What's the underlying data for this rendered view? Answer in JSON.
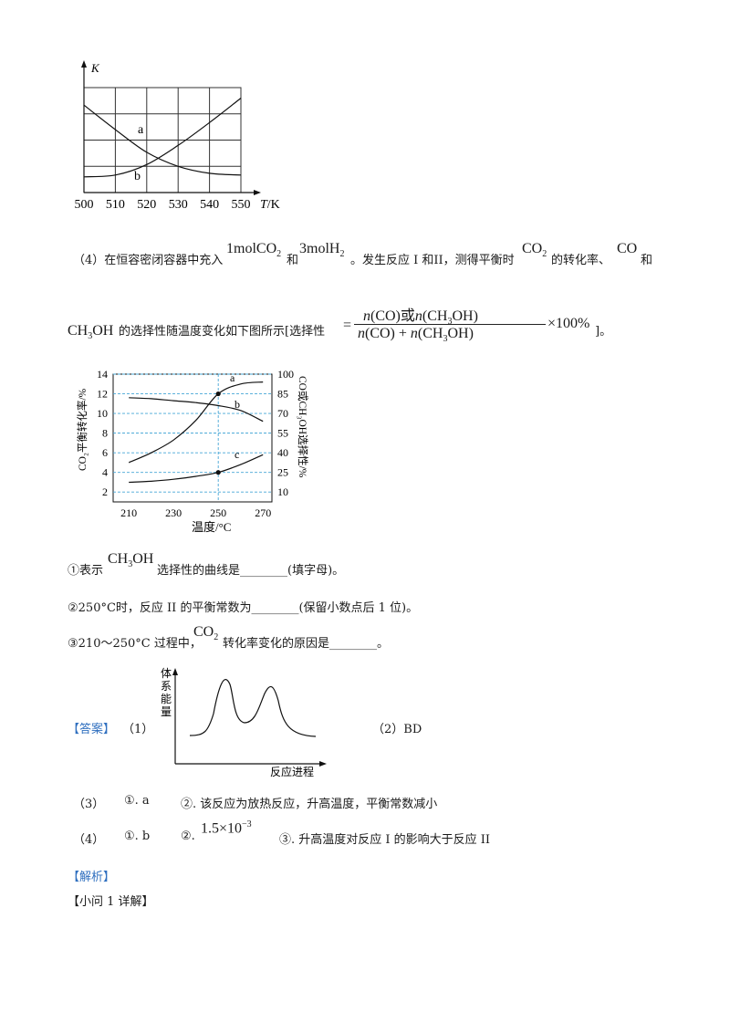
{
  "chart_k": {
    "y_label": "K",
    "x_label_italic": "T",
    "x_label_unit": "/K",
    "x_ticks": [
      "500",
      "510",
      "520",
      "530",
      "540",
      "550"
    ],
    "curve_labels": [
      "a",
      "b"
    ],
    "chart_data": {
      "type": "line",
      "x": [
        500,
        510,
        520,
        530,
        540,
        550
      ],
      "series": [
        {
          "name": "a",
          "values": [
            4.0,
            3.3,
            2.65,
            2.25,
            2.05,
            2.0
          ]
        },
        {
          "name": "b",
          "values": [
            1.95,
            2.0,
            2.3,
            2.85,
            3.5,
            4.2
          ]
        }
      ],
      "xlabel": "T/K",
      "ylabel": "K"
    }
  },
  "para4": {
    "lead": "（4）在恒容密闭容器中充入",
    "co2_amount": "1molCO",
    "he": "和",
    "h2_amount": "3molH",
    "mid": "。发生反应 I 和II，测得平衡时",
    "co2": "CO",
    "mid2": "的转化率、",
    "co": "CO",
    "tail": "和",
    "ch3oh_a": "CH",
    "ch3oh_b": "OH",
    "line2": "的选择性随温度变化如下图所示[选择性",
    "eq": "=",
    "num_a": "n",
    "num_b": "(CO)或",
    "num_c": "n",
    "num_d": "(CH",
    "num_e": "OH)",
    "den_a": "n",
    "den_b": "(CO) + ",
    "den_c": "n",
    "den_d": "(CH",
    "den_e": "OH)",
    "times": "×100%",
    "end": "]。",
    "sub2": "2",
    "sub3": "3"
  },
  "chart_sel": {
    "left_ticks": [
      "14",
      "12",
      "10",
      "8",
      "6",
      "4",
      "2"
    ],
    "right_ticks": [
      "100",
      "85",
      "70",
      "55",
      "40",
      "25",
      "10"
    ],
    "x_ticks": [
      "210",
      "230",
      "250",
      "270"
    ],
    "x_label": "温度/°C",
    "left_label": "CO₂平衡转化率/%",
    "right_label": "CO或CH₃OH选择性/%",
    "curve_labels": [
      "a",
      "b",
      "c"
    ],
    "chart_data": {
      "type": "line",
      "x": [
        210,
        220,
        230,
        240,
        250,
        260,
        270
      ],
      "series": [
        {
          "name": "a",
          "values": [
            5.0,
            6.0,
            7.3,
            9.3,
            12.0,
            13.0,
            13.2
          ]
        },
        {
          "name": "b",
          "values": [
            11.6,
            11.5,
            11.3,
            11.1,
            10.8,
            10.3,
            9.2
          ]
        },
        {
          "name": "c",
          "values": [
            3.0,
            3.1,
            3.3,
            3.6,
            4.0,
            4.8,
            5.8
          ]
        }
      ],
      "xlabel": "温度/°C",
      "ylabel": "CO₂平衡转化率/%",
      "y2label": "CO或CH₃OH选择性/%",
      "ylim": [
        1,
        14
      ],
      "y2lim": [
        5,
        100
      ]
    }
  },
  "q1": {
    "a": "①表示",
    "b": "CH",
    "c": "OH",
    "d": "选择性的曲线是________(填字母)。"
  },
  "q2": "②250°C时，反应 II 的平衡常数为________(保留小数点后 1 位)。",
  "q3": {
    "a": "③210～250°C 过程中，",
    "b": "CO",
    "c": "转化率变化的原因是________。"
  },
  "answer": {
    "tag": "【答案】",
    "p1": "（1）",
    "energy_label": "体系能量",
    "progress_label": "反应进程",
    "p2": "（2）BD",
    "p3_num": "（3）",
    "p3_a": "①. a",
    "p3_b": "②. 该反应为放热反应，升高温度，平衡常数减小",
    "p4_num": "（4）",
    "p4_a": "①. b",
    "p4_b": "②.",
    "p4_val": "1.5×10",
    "p4_exp": "−3",
    "p4_c": "③. 升高温度对反应 I 的影响大于反应 II"
  },
  "analysis": {
    "tag": "【解析】",
    "sub": "【小问 1 详解】"
  }
}
